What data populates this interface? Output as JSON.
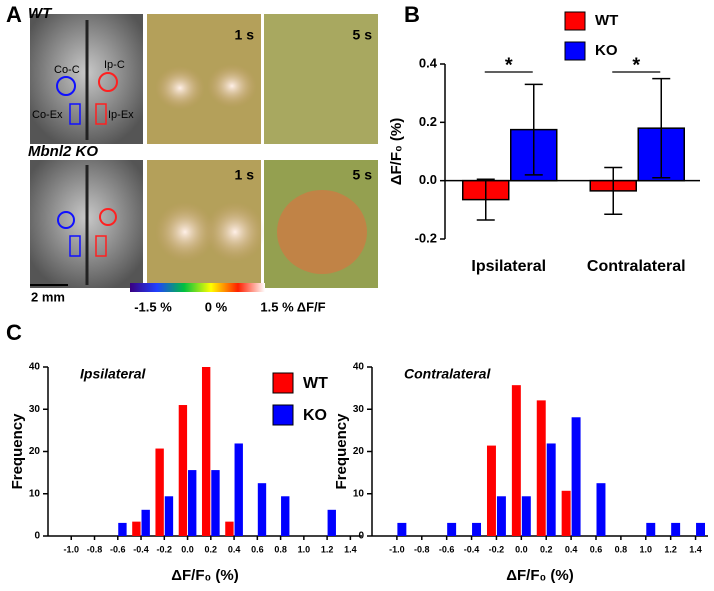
{
  "panel_labels": [
    "A",
    "B",
    "C"
  ],
  "panel_a": {
    "rows": [
      {
        "genotype": "WT",
        "times": [
          "1 s",
          "5 s"
        ],
        "rois": [
          "Co-C",
          "Ip-C",
          "Co-Ex",
          "Ip-Ex"
        ]
      },
      {
        "genotype": "Mbnl2 KO",
        "times": [
          "1 s",
          "5 s"
        ]
      }
    ],
    "scale_bar": "2 mm",
    "colorbar": [
      "-1.5 %",
      "0 %",
      "1.5 % ΔF/F"
    ]
  },
  "chart_data": [
    {
      "type": "bar",
      "ylabel": "ΔF/F₀ (%)",
      "categories": [
        "Ipsilateral",
        "Contralateral"
      ],
      "series": [
        {
          "name": "WT",
          "color": "#ff0000",
          "values": [
            -0.065,
            -0.035
          ],
          "errors": [
            0.07,
            0.08
          ]
        },
        {
          "name": "KO",
          "color": "#0000ff",
          "values": [
            0.175,
            0.18
          ],
          "errors": [
            0.155,
            0.17
          ]
        }
      ],
      "ylim": [
        -0.2,
        0.4
      ],
      "yticks": [
        -0.2,
        {
          "value": 0,
          "label": "0.0"
        },
        0.2,
        0.4
      ],
      "annotations": [
        "*",
        "*"
      ],
      "legend": "top"
    },
    {
      "type": "bar",
      "annotation": "Ipsilateral",
      "ylabel": "Frequency",
      "xlabel": "ΔF/F₀ (%)",
      "x": [
        -1.0,
        -0.8,
        -0.6,
        -0.4,
        -0.2,
        0,
        0.2,
        0.4,
        0.6,
        0.8,
        1.0,
        1.2,
        1.4
      ],
      "series": [
        {
          "name": "WT",
          "color": "#ff0000",
          "values": [
            0,
            0,
            0,
            3.4,
            20.7,
            31,
            40,
            3.4,
            0,
            0,
            0,
            0,
            0
          ]
        },
        {
          "name": "KO",
          "color": "#0000ff",
          "values": [
            0,
            0,
            3.1,
            6.2,
            9.4,
            15.6,
            15.6,
            21.9,
            12.5,
            9.4,
            0,
            6.2,
            0
          ]
        }
      ],
      "xlim": [
        -1.2,
        1.5
      ],
      "xticks": [
        {
          "value": -1,
          "label": "-1.0"
        },
        -0.8,
        -0.6,
        -0.4,
        -0.2,
        {
          "value": 0,
          "label": "0.0"
        },
        0.2,
        0.4,
        0.6,
        0.8,
        {
          "value": 1,
          "label": "1.0"
        },
        1.2,
        1.4
      ],
      "ylim": [
        0,
        40
      ],
      "yticks": [
        0,
        10,
        20,
        30,
        40
      ],
      "legend": "center-right"
    },
    {
      "type": "bar",
      "annotation": "Contralateral",
      "ylabel": "Frequency",
      "xlabel": "ΔF/F₀ (%)",
      "x": [
        -1.0,
        -0.8,
        -0.6,
        -0.4,
        -0.2,
        0,
        0.2,
        0.4,
        0.6,
        0.8,
        1.0,
        1.2,
        1.4
      ],
      "series": [
        {
          "color": "#ff0000",
          "values": [
            0,
            0,
            0,
            0,
            21.4,
            35.7,
            32.1,
            10.7,
            0,
            0,
            0,
            0,
            0
          ]
        },
        {
          "color": "#0000ff",
          "values": [
            3.1,
            0,
            3.1,
            3.1,
            9.4,
            9.4,
            21.9,
            28.1,
            12.5,
            0,
            3.1,
            3.1,
            3.1
          ]
        }
      ],
      "xlim": [
        -1.2,
        1.5
      ],
      "xticks": [
        {
          "value": -1,
          "label": "-1.0"
        },
        -0.8,
        -0.6,
        -0.4,
        -0.2,
        {
          "value": 0,
          "label": "0.0"
        },
        0.2,
        0.4,
        0.6,
        0.8,
        {
          "value": 1,
          "label": "1.0"
        },
        1.2,
        1.4
      ],
      "ylim": [
        0,
        40
      ],
      "yticks": [
        0,
        10,
        20,
        30,
        40
      ]
    }
  ]
}
